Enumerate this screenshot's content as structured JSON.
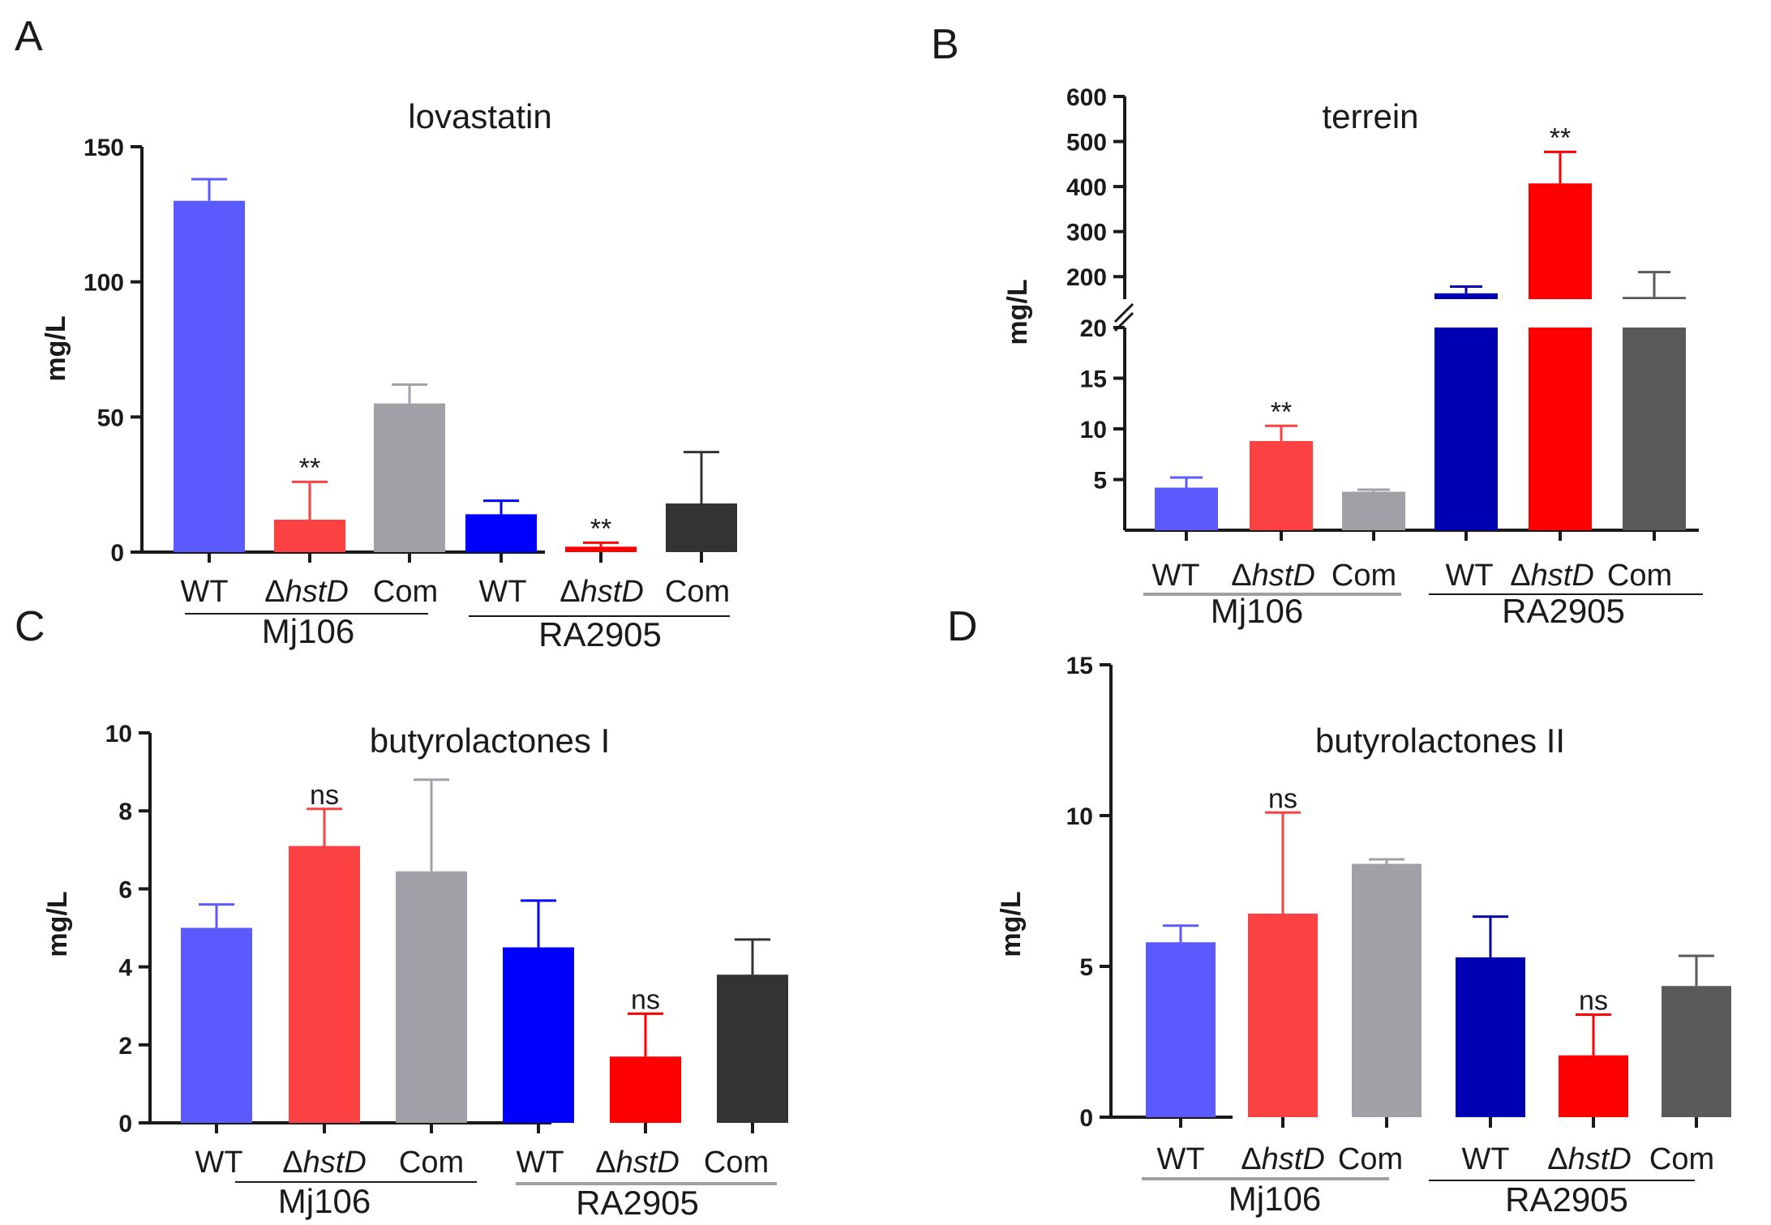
{
  "chart_data": [
    {
      "panel": "A",
      "type": "bar",
      "title": "lovastatin",
      "ylabel": "mg/L",
      "ylim": [
        0,
        150
      ],
      "yticks": [
        0,
        50,
        100,
        150
      ],
      "categories": [
        "WT",
        "ΔhstD",
        "Com",
        "WT",
        "ΔhstD",
        "Com"
      ],
      "groups": [
        "Mj106",
        "RA2905"
      ],
      "values": [
        130,
        12,
        55,
        14,
        2,
        18
      ],
      "errors": [
        8,
        14,
        7,
        5,
        1.5,
        19
      ],
      "annotations": [
        "",
        "**",
        "",
        "",
        "**",
        ""
      ],
      "colors": [
        "#5a5aff",
        "#fb4141",
        "#a0a0a6",
        "#0000ff",
        "#ff0000",
        "#333333"
      ]
    },
    {
      "panel": "B",
      "type": "bar",
      "title": "terrein",
      "ylabel": "mg/L",
      "axis_break": true,
      "ylim_lower": [
        0,
        20
      ],
      "ylim_upper": [
        150,
        600
      ],
      "yticks_lower": [
        5,
        10,
        15,
        20
      ],
      "yticks_upper": [
        200,
        300,
        400,
        500,
        600
      ],
      "categories": [
        "WT",
        "ΔhstD",
        "Com",
        "WT",
        "ΔhstD",
        "Com"
      ],
      "groups": [
        "Mj106",
        "RA2905"
      ],
      "values": [
        4.2,
        8.8,
        3.8,
        163,
        407,
        155
      ],
      "errors": [
        1.0,
        1.5,
        0.2,
        15,
        70,
        55
      ],
      "annotations": [
        "",
        "**",
        "",
        "",
        "**",
        ""
      ],
      "colors": [
        "#5a5aff",
        "#fb4141",
        "#a0a0a6",
        "#0000b2",
        "#ff0000",
        "#5a5a5a"
      ]
    },
    {
      "panel": "C",
      "type": "bar",
      "title": "butyrolactones I",
      "ylabel": "mg/L",
      "ylim": [
        0,
        10
      ],
      "yticks": [
        0,
        2,
        4,
        6,
        8,
        10
      ],
      "categories": [
        "WT",
        "ΔhstD",
        "Com",
        "WT",
        "ΔhstD",
        "Com"
      ],
      "groups": [
        "Mj106",
        "RA2905"
      ],
      "values": [
        5.0,
        7.1,
        6.45,
        4.5,
        1.7,
        3.8
      ],
      "errors": [
        0.6,
        0.95,
        2.35,
        1.2,
        1.1,
        0.9
      ],
      "annotations": [
        "",
        "ns",
        "",
        "",
        "ns",
        ""
      ],
      "colors": [
        "#5a5aff",
        "#fb4141",
        "#a0a0a6",
        "#0000ff",
        "#ff0000",
        "#333333"
      ]
    },
    {
      "panel": "D",
      "type": "bar",
      "title": "butyrolactones II",
      "ylabel": "mg/L",
      "ylim": [
        0,
        15
      ],
      "yticks": [
        0,
        5,
        10,
        15
      ],
      "categories": [
        "WT",
        "ΔhstD",
        "Com",
        "WT",
        "ΔhstD",
        "Com"
      ],
      "groups": [
        "Mj106",
        "RA2905"
      ],
      "values": [
        5.8,
        6.75,
        8.4,
        5.3,
        2.05,
        4.35
      ],
      "errors": [
        0.55,
        3.35,
        0.15,
        1.35,
        1.35,
        1.0
      ],
      "annotations": [
        "",
        "ns",
        "",
        "",
        "ns",
        ""
      ],
      "colors": [
        "#5a5aff",
        "#fb4141",
        "#a0a0a6",
        "#0000b2",
        "#ff0000",
        "#5a5a5a"
      ]
    }
  ]
}
